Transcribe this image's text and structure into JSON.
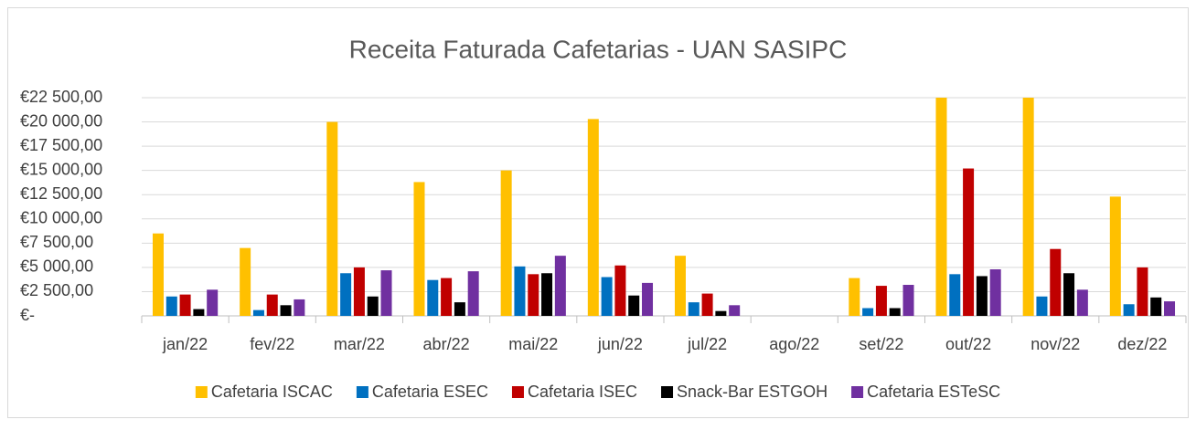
{
  "chart_data": {
    "type": "bar",
    "title": "Receita Faturada Cafetarias - UAN SASIPC",
    "categories": [
      "jan/22",
      "fev/22",
      "mar/22",
      "abr/22",
      "mai/22",
      "jun/22",
      "jul/22",
      "ago/22",
      "set/22",
      "out/22",
      "nov/22",
      "dez/22"
    ],
    "series": [
      {
        "name": "Cafetaria ISCAC",
        "color": "#FFC000",
        "values": [
          8500,
          7000,
          20000,
          13800,
          15000,
          20300,
          6200,
          0,
          3900,
          22500,
          22500,
          12300
        ]
      },
      {
        "name": "Cafetaria ESEC",
        "color": "#0070C0",
        "values": [
          2000,
          600,
          4400,
          3700,
          5100,
          4000,
          1400,
          0,
          800,
          4300,
          2000,
          1200
        ]
      },
      {
        "name": "Cafetaria ISEC",
        "color": "#C00000",
        "values": [
          2200,
          2200,
          5000,
          3900,
          4300,
          5200,
          2300,
          0,
          3100,
          15200,
          6900,
          5000
        ]
      },
      {
        "name": "Snack-Bar ESTGOH",
        "color": "#000000",
        "values": [
          700,
          1100,
          2000,
          1400,
          4400,
          2100,
          500,
          0,
          800,
          4100,
          4400,
          1900
        ]
      },
      {
        "name": "Cafetaria ESTeSC",
        "color": "#7030A0",
        "values": [
          2700,
          1700,
          4700,
          4600,
          6200,
          3400,
          1100,
          0,
          3200,
          4800,
          2700,
          1500
        ]
      }
    ],
    "ylim": [
      0,
      22500
    ],
    "yticks": [
      {
        "value": 0,
        "label": "€-"
      },
      {
        "value": 2500,
        "label": "€2 500,00"
      },
      {
        "value": 5000,
        "label": "€5 000,00"
      },
      {
        "value": 7500,
        "label": "€7 500,00"
      },
      {
        "value": 10000,
        "label": "€10 000,00"
      },
      {
        "value": 12500,
        "label": "€12 500,00"
      },
      {
        "value": 15000,
        "label": "€15 000,00"
      },
      {
        "value": 17500,
        "label": "€17 500,00"
      },
      {
        "value": 20000,
        "label": "€20 000,00"
      },
      {
        "value": 22500,
        "label": "€22 500,00"
      }
    ],
    "grid": true,
    "legend": "bottom"
  }
}
